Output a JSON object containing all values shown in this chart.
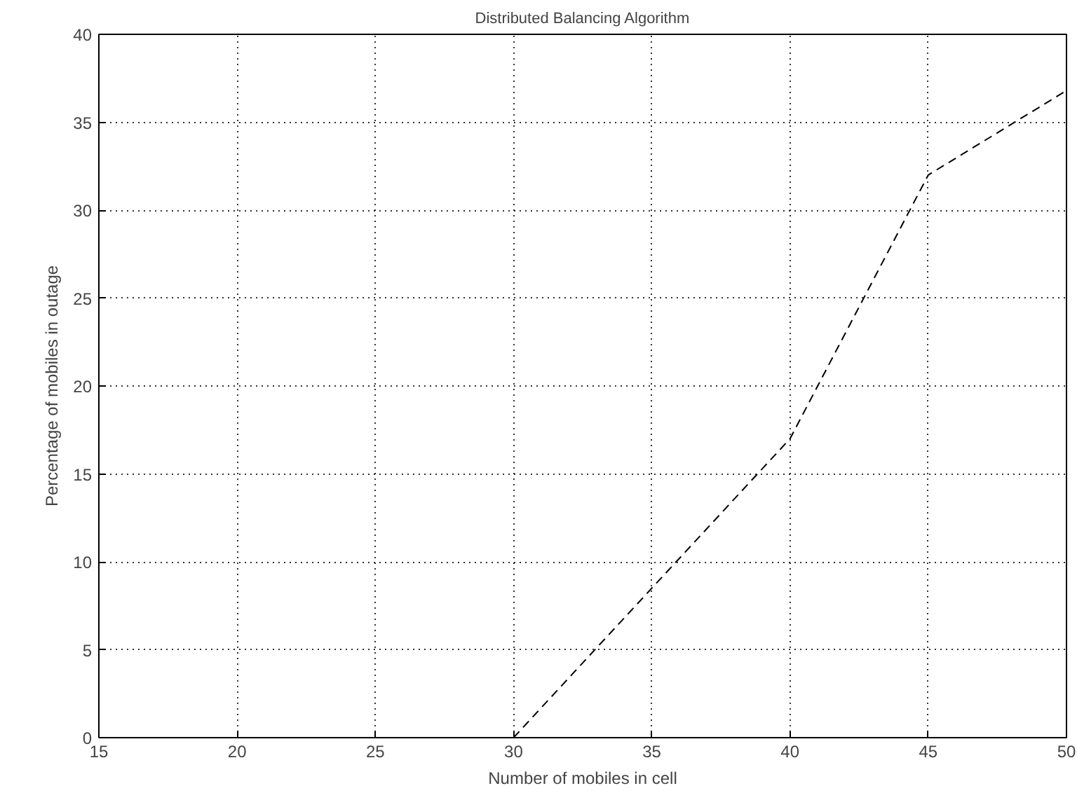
{
  "chart_data": {
    "type": "line",
    "title": "Distributed Balancing Algorithm",
    "xlabel": "Number of mobiles in cell",
    "ylabel": "Percentage of mobiles in outage",
    "x": [
      30,
      40,
      45,
      50
    ],
    "series": [
      {
        "color": "#000000",
        "values": [
          0,
          17,
          32,
          36.8
        ]
      }
    ],
    "xlim": [
      15,
      50
    ],
    "xticks": [
      15,
      20,
      25,
      30,
      35,
      40,
      45,
      50
    ],
    "ylim": [
      0,
      40
    ],
    "yticks": [
      0,
      5,
      10,
      15,
      20,
      25,
      30,
      35,
      40
    ],
    "grid": true,
    "line_style": "dashed",
    "marker": "none"
  }
}
